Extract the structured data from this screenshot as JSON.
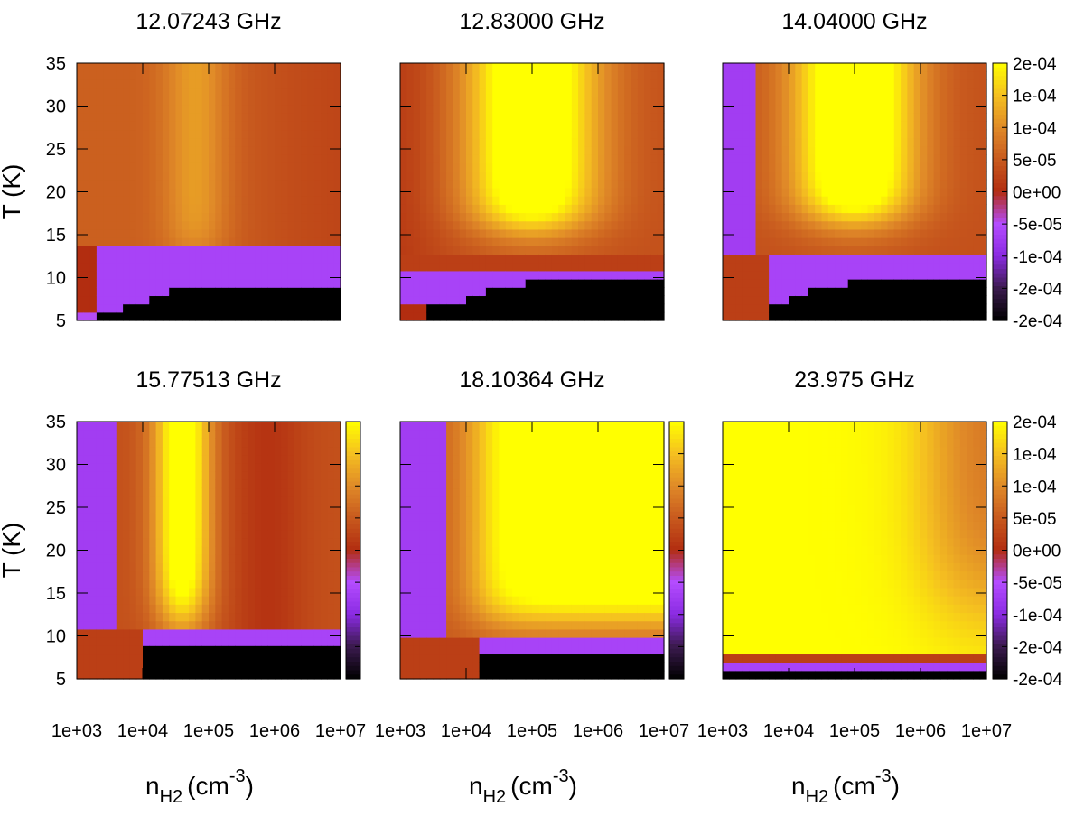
{
  "chart_data": {
    "type": "heatmap",
    "xlabel": "n",
    "xlabel_sub": "H2",
    "xlabel_unit": "(cm",
    "xlabel_sup": "-3",
    "xlabel_close": ")",
    "ylabel": "T (K)",
    "x_scale": "log",
    "xlim": [
      1000,
      10000000
    ],
    "ylim": [
      5,
      35
    ],
    "x_ticks": [
      "1e+03",
      "1e+04",
      "1e+05",
      "1e+06",
      "1e+07"
    ],
    "y_ticks": [
      "5",
      "10",
      "15",
      "20",
      "25",
      "30",
      "35"
    ],
    "colormap": [
      "#000000",
      "#3b1a4e",
      "#8a2be2",
      "#b44cff",
      "#b22d10",
      "#c85a1e",
      "#e08a28",
      "#f5c020",
      "#ffff00"
    ],
    "colorbar_ticks": [
      "2e-04",
      "1e-04",
      "1e-04",
      "5e-05",
      "0e+00",
      "-5e-05",
      "-1e-04",
      "-2e-04",
      "-2e-04"
    ],
    "panels": [
      {
        "title": "12.07243 GHz"
      },
      {
        "title": "12.83000 GHz"
      },
      {
        "title": "14.04000 GHz"
      },
      {
        "title": "15.77513 GHz"
      },
      {
        "title": "18.10364 GHz"
      },
      {
        "title": "23.975 GHz"
      }
    ]
  }
}
